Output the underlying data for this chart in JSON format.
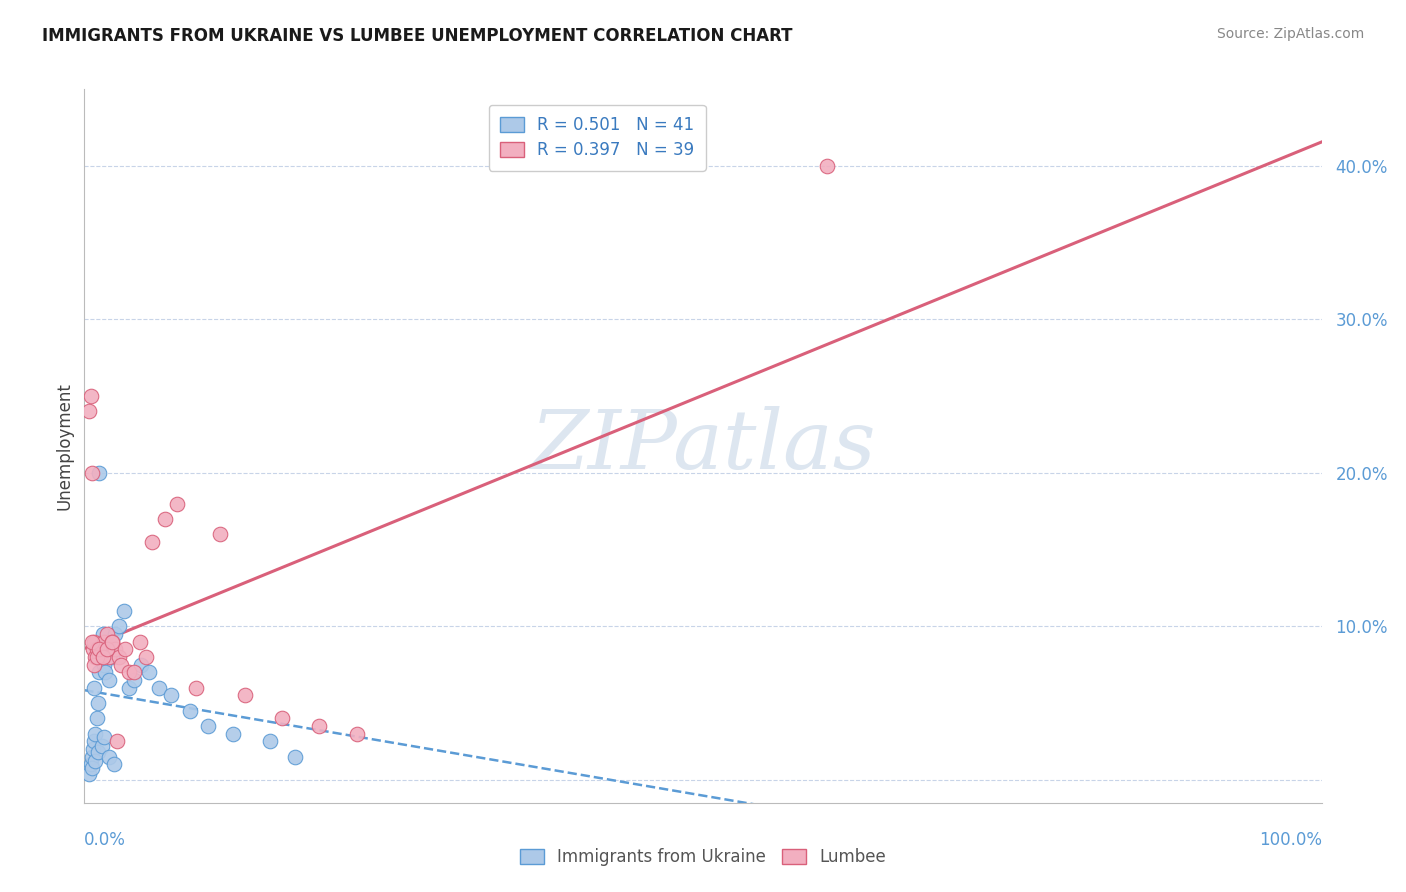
{
  "title": "IMMIGRANTS FROM UKRAINE VS LUMBEE UNEMPLOYMENT CORRELATION CHART",
  "source": "Source: ZipAtlas.com",
  "ylabel": "Unemployment",
  "legend_r1": "R = 0.501",
  "legend_n1": "N = 41",
  "legend_r2": "R = 0.397",
  "legend_n2": "N = 39",
  "ukraine_face_color": "#adc9e8",
  "ukraine_edge_color": "#5b9bd5",
  "ukraine_line_color": "#5b9bd5",
  "lumbee_face_color": "#f2afc0",
  "lumbee_edge_color": "#d9607a",
  "lumbee_line_color": "#d9607a",
  "watermark_color": "#dde6f0",
  "background_color": "#ffffff",
  "grid_color": "#c8d4e8",
  "right_axis_color": "#5b9bd5",
  "title_color": "#1a1a1a",
  "source_color": "#888888",
  "legend_text_color": "#3a7abf",
  "ukraine_x": [
    0.004,
    0.005,
    0.006,
    0.007,
    0.008,
    0.008,
    0.009,
    0.01,
    0.011,
    0.012,
    0.013,
    0.014,
    0.015,
    0.016,
    0.017,
    0.018,
    0.019,
    0.02,
    0.022,
    0.025,
    0.028,
    0.032,
    0.036,
    0.04,
    0.046,
    0.052,
    0.06,
    0.07,
    0.085,
    0.1,
    0.12,
    0.15,
    0.17,
    0.006,
    0.009,
    0.011,
    0.014,
    0.016,
    0.02,
    0.024,
    0.012
  ],
  "ukraine_y": [
    0.004,
    0.01,
    0.015,
    0.02,
    0.025,
    0.06,
    0.03,
    0.04,
    0.05,
    0.07,
    0.08,
    0.09,
    0.095,
    0.075,
    0.07,
    0.085,
    0.09,
    0.065,
    0.08,
    0.095,
    0.1,
    0.11,
    0.06,
    0.065,
    0.075,
    0.07,
    0.06,
    0.055,
    0.045,
    0.035,
    0.03,
    0.025,
    0.015,
    0.008,
    0.012,
    0.018,
    0.022,
    0.028,
    0.015,
    0.01,
    0.2
  ],
  "lumbee_x": [
    0.004,
    0.006,
    0.007,
    0.008,
    0.009,
    0.01,
    0.012,
    0.014,
    0.016,
    0.018,
    0.02,
    0.022,
    0.025,
    0.028,
    0.03,
    0.033,
    0.036,
    0.04,
    0.045,
    0.05,
    0.055,
    0.065,
    0.075,
    0.09,
    0.11,
    0.13,
    0.16,
    0.19,
    0.22,
    0.005,
    0.006,
    0.008,
    0.01,
    0.012,
    0.015,
    0.018,
    0.022,
    0.026,
    0.6
  ],
  "lumbee_y": [
    0.24,
    0.2,
    0.085,
    0.09,
    0.08,
    0.085,
    0.08,
    0.085,
    0.09,
    0.095,
    0.08,
    0.09,
    0.085,
    0.08,
    0.075,
    0.085,
    0.07,
    0.07,
    0.09,
    0.08,
    0.155,
    0.17,
    0.18,
    0.06,
    0.16,
    0.055,
    0.04,
    0.035,
    0.03,
    0.25,
    0.09,
    0.075,
    0.08,
    0.085,
    0.08,
    0.085,
    0.09,
    0.025,
    0.4
  ],
  "xlim": [
    0.0,
    1.0
  ],
  "ylim": [
    -0.015,
    0.45
  ],
  "ytick_vals": [
    0.0,
    0.1,
    0.2,
    0.3,
    0.4
  ],
  "ytick_labels": [
    "",
    "10.0%",
    "20.0%",
    "30.0%",
    "40.0%"
  ]
}
